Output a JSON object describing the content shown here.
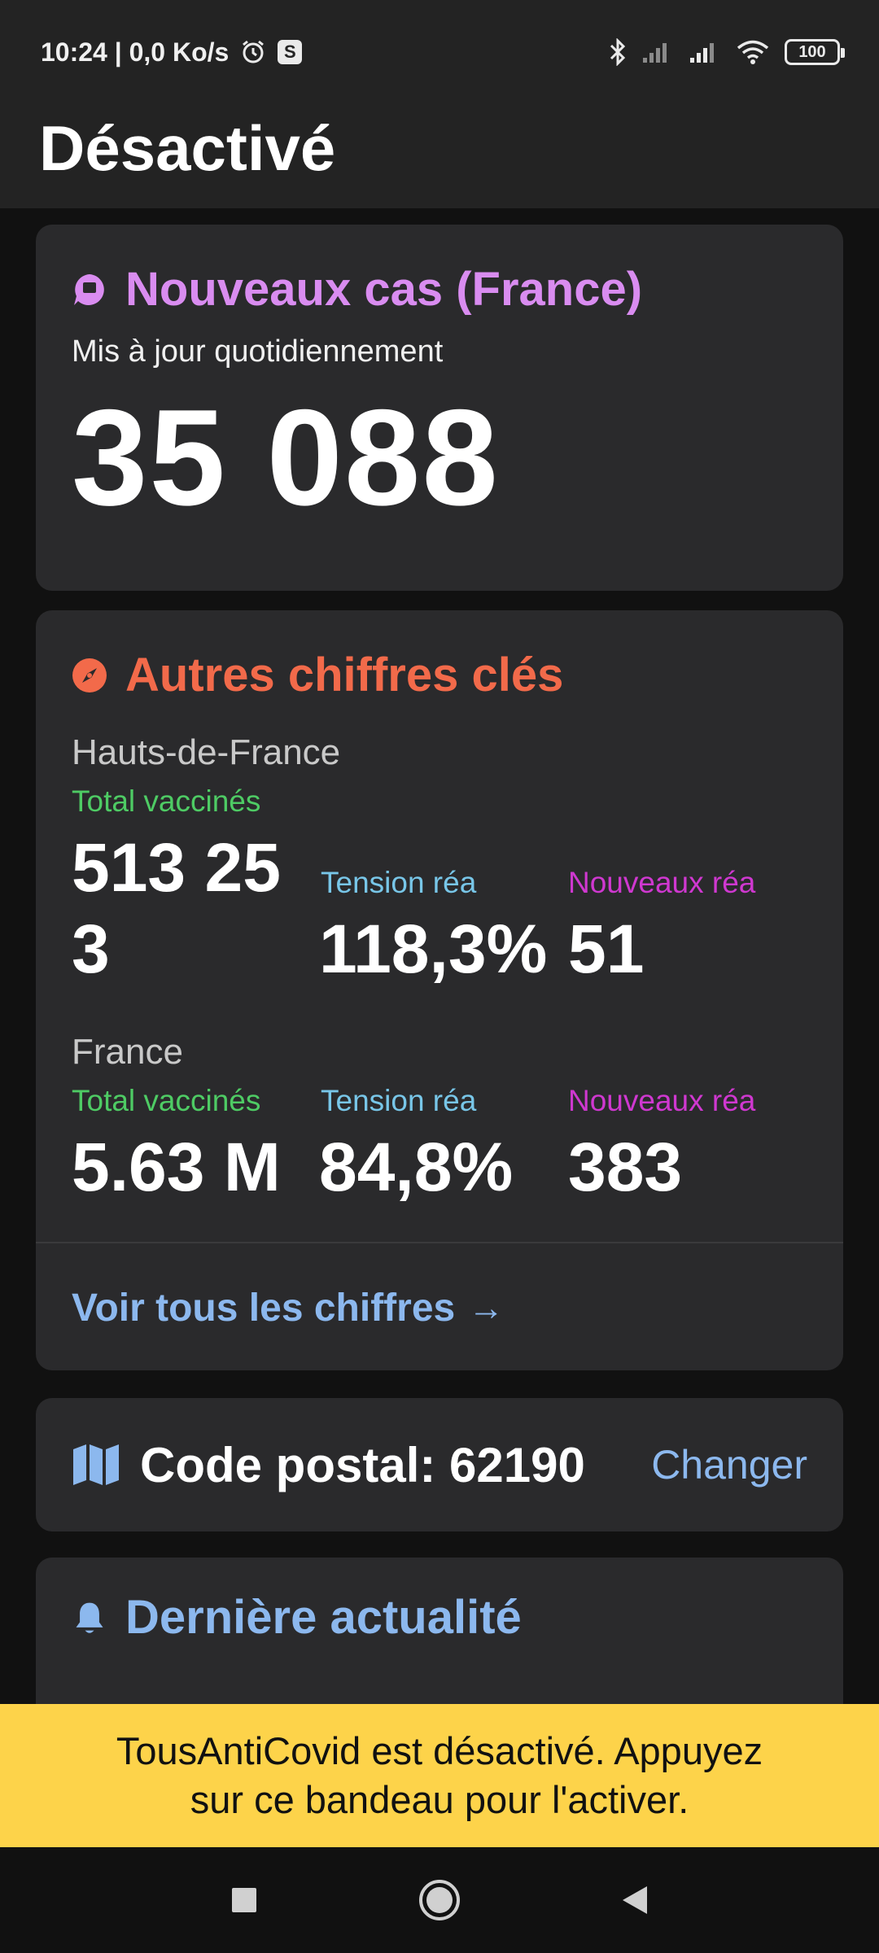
{
  "status_bar": {
    "time_speed": "10:24 | 0,0 Ko/s",
    "s_badge": "S",
    "battery": "100"
  },
  "header": {
    "title": "Désactivé"
  },
  "cases_card": {
    "title": "Nouveaux cas (France)",
    "subtitle": "Mis à jour quotidiennement",
    "value": "35 088",
    "accent": "#d98cf0"
  },
  "key_figures": {
    "title": "Autres chiffres clés",
    "accent": "#f26a4a",
    "regions": [
      {
        "name": "Hauts-de-France",
        "stats": [
          {
            "label": "Total vaccinés",
            "value_line1": "513 25",
            "value_line2": "3"
          },
          {
            "label": "Tension réa",
            "value": "118,3%"
          },
          {
            "label": "Nouveaux réa",
            "value": "51"
          }
        ]
      },
      {
        "name": "France",
        "stats": [
          {
            "label": "Total vaccinés",
            "value": "5.63 M"
          },
          {
            "label": "Tension réa",
            "value": "84,8%"
          },
          {
            "label": "Nouveaux réa",
            "value": "383"
          }
        ]
      }
    ],
    "see_all": "Voir tous les chiffres",
    "see_all_arrow": "→"
  },
  "postal": {
    "text": "Code postal: 62190",
    "change": "Changer"
  },
  "news": {
    "title": "Dernière actualité"
  },
  "banner": {
    "line1": "TousAntiCovid est désactivé. Appuyez",
    "line2": "sur ce bandeau pour l'activer."
  },
  "colors": {
    "green": "#4ecb64",
    "blue": "#78c6e8",
    "pink": "#cf38d0",
    "link": "#8cb8ee",
    "banner": "#fdd34a"
  }
}
